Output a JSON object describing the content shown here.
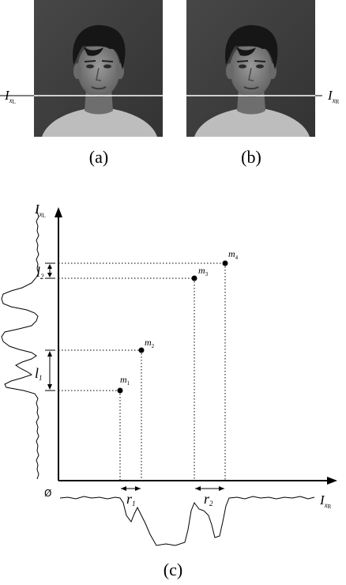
{
  "panels": {
    "a": {
      "caption": "(a)",
      "line_label": {
        "base": "I",
        "sub": "x",
        "subsub": "L"
      }
    },
    "b": {
      "caption": "(b)",
      "line_label": {
        "base": "I",
        "sub": "x",
        "subsub": "R"
      }
    },
    "c": {
      "caption": "(c)"
    }
  },
  "plot": {
    "y_axis_label": {
      "base": "I",
      "sub": "x",
      "subsub": "L"
    },
    "x_axis_label": {
      "base": "I",
      "sub": "x",
      "subsub": "R"
    },
    "origin_label": "Ø",
    "points": [
      {
        "base": "m",
        "sub": "1"
      },
      {
        "base": "m",
        "sub": "2"
      },
      {
        "base": "m",
        "sub": "3"
      },
      {
        "base": "m",
        "sub": "4"
      }
    ],
    "vertical_intervals": [
      {
        "base": "l",
        "sub": "1"
      },
      {
        "base": "l",
        "sub": "2"
      }
    ],
    "horizontal_intervals": [
      {
        "base": "r",
        "sub": "1"
      },
      {
        "base": "r",
        "sub": "2"
      }
    ]
  },
  "colors": {
    "photo_background": "#3c3c3c",
    "skin": "#8a8a8a",
    "hair": "#141414",
    "shirt": "#c4c4c4",
    "scanline": "#ffffff"
  }
}
